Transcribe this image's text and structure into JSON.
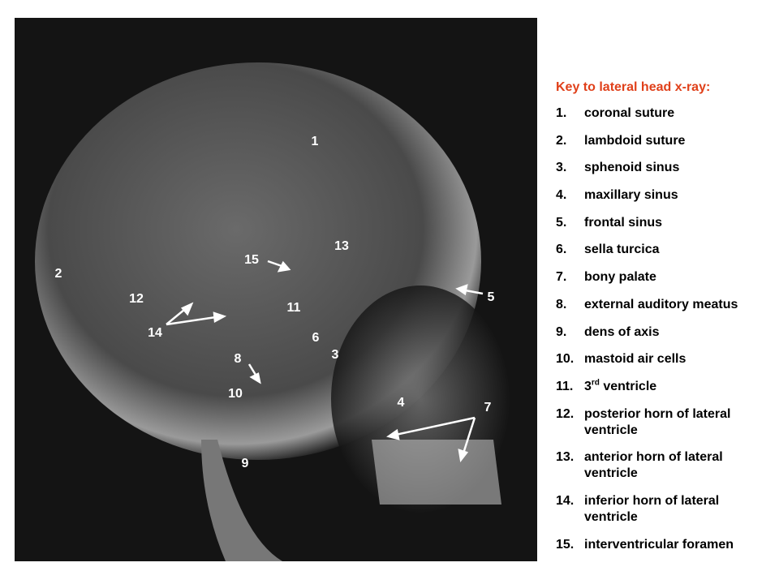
{
  "image": {
    "labels": [
      {
        "text": "1"
      },
      {
        "text": "2"
      },
      {
        "text": "3"
      },
      {
        "text": "4"
      },
      {
        "text": "5"
      },
      {
        "text": "6"
      },
      {
        "text": "7"
      },
      {
        "text": "8"
      },
      {
        "text": "9"
      },
      {
        "text": "10"
      },
      {
        "text": "11"
      },
      {
        "text": "12"
      },
      {
        "text": "13"
      },
      {
        "text": "14"
      },
      {
        "text": "15"
      }
    ]
  },
  "key": {
    "title": "Key to lateral head x-ray:",
    "items": [
      {
        "number": "1.",
        "text": "coronal suture"
      },
      {
        "number": "2.",
        "text": "lambdoid suture"
      },
      {
        "number": "3.",
        "text": "sphenoid sinus"
      },
      {
        "number": "4.",
        "text": "maxillary sinus"
      },
      {
        "number": "5.",
        "text": "frontal sinus"
      },
      {
        "number": "6.",
        "text": "sella turcica"
      },
      {
        "number": "7.",
        "text": "bony palate"
      },
      {
        "number": "8.",
        "text": "external auditory meatus"
      },
      {
        "number": "9.",
        "text": "dens of axis"
      },
      {
        "number": "10.",
        "text": "mastoid air cells"
      },
      {
        "number": "11.",
        "text": "3",
        "sup": "rd",
        "text_after": " ventricle"
      },
      {
        "number": "12.",
        "text": "posterior horn of lateral ventricle"
      },
      {
        "number": "13.",
        "text": "anterior horn of lateral ventricle"
      },
      {
        "number": "14.",
        "text": "inferior horn of lateral ventricle"
      },
      {
        "number": "15.",
        "text": "interventricular foramen"
      }
    ]
  }
}
